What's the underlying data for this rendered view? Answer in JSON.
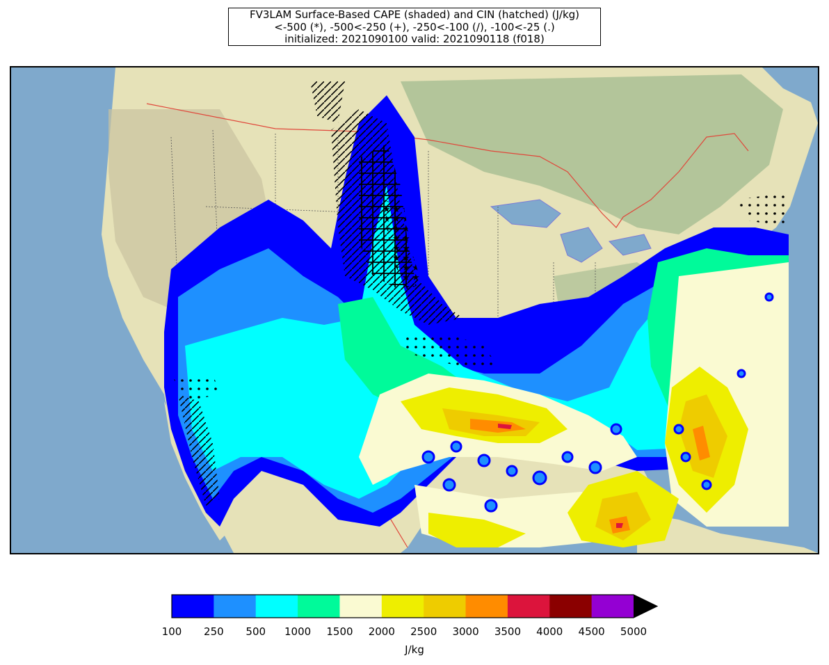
{
  "title": {
    "line1": "FV3LAM Surface-Based CAPE (shaded) and CIN (hatched) (J/kg)",
    "line2": "<-500 (*), -500<-250 (+), -250<-100 (/), -100<-25 (.)",
    "line3": "initialized: 2021090100 valid: 2021090118 (f018)"
  },
  "colorbar": {
    "units": "J/kg",
    "tick_labels": [
      "100",
      "250",
      "500",
      "1000",
      "1500",
      "2000",
      "2500",
      "3000",
      "3500",
      "4000",
      "4500",
      "5000"
    ],
    "colors": [
      "#0000ff",
      "#1e90ff",
      "#00ffff",
      "#00fa9a",
      "#fafad2",
      "#eeee00",
      "#eecc00",
      "#ff8c00",
      "#dc143c",
      "#8b0000",
      "#9400d3"
    ],
    "extend": "max",
    "extend_color": "#000000"
  },
  "map": {
    "ocean_color": "#7fa9cc",
    "land_color": "#e6e2b8",
    "forest_color": "#a9bf94",
    "border_color": "#e0463a",
    "state_line_color": "#555555"
  }
}
